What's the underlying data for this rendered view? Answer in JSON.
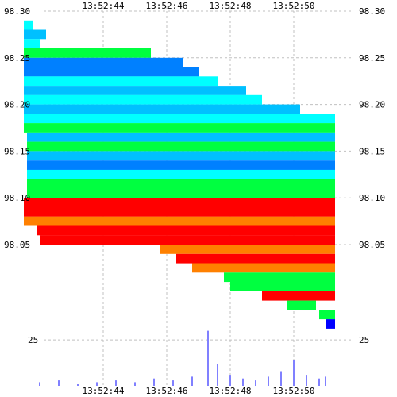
{
  "chart_data": [
    {
      "type": "heatmap",
      "title": "",
      "xlabel": "",
      "ylabel": "",
      "x_tick_labels": [
        "13:52:44",
        "13:52:46",
        "13:52:48",
        "13:52:50"
      ],
      "y_tick_labels": [
        "98.30",
        "98.25",
        "98.20",
        "98.15",
        "98.10",
        "98.05"
      ],
      "ylim": [
        98.0,
        98.3
      ],
      "grid": true,
      "colors": {
        "red": "#ff0000",
        "orange": "#ff8000",
        "yellow": "#ffe000",
        "green": "#00ff40",
        "cyan": "#00ffff",
        "sky": "#00c0ff",
        "blue": "#0080ff",
        "navy": "#0000ff",
        "purple": "#8000ff"
      },
      "bands": [
        {
          "price": 98.285,
          "start": "13:52:41.5",
          "end": "13:52:41.8",
          "color": "cyan"
        },
        {
          "price": 98.275,
          "start": "13:52:41.5",
          "end": "13:52:42.2",
          "color": "sky"
        },
        {
          "price": 98.265,
          "start": "13:52:41.5",
          "end": "13:52:42.0",
          "color": "cyan"
        },
        {
          "price": 98.255,
          "start": "13:52:41.5",
          "end": "13:52:45.5",
          "color": "green"
        },
        {
          "price": 98.245,
          "start": "13:52:41.5",
          "end": "13:52:46.5",
          "color": "blue"
        },
        {
          "price": 98.235,
          "start": "13:52:41.5",
          "end": "13:52:47.0",
          "color": "blue"
        },
        {
          "price": 98.225,
          "start": "13:52:41.5",
          "end": "13:52:47.6",
          "color": "cyan"
        },
        {
          "price": 98.215,
          "start": "13:52:41.5",
          "end": "13:52:48.5",
          "color": "sky"
        },
        {
          "price": 98.205,
          "start": "13:52:41.5",
          "end": "13:52:49.0",
          "color": "cyan"
        },
        {
          "price": 98.195,
          "start": "13:52:41.5",
          "end": "13:52:50.2",
          "color": "sky"
        },
        {
          "price": 98.185,
          "start": "13:52:41.5",
          "end": "13:52:51.3",
          "color": "cyan"
        },
        {
          "price": 98.175,
          "start": "13:52:41.5",
          "end": "13:52:51.3",
          "color": "green"
        },
        {
          "price": 98.165,
          "start": "13:52:41.6",
          "end": "13:52:51.3",
          "color": "sky"
        },
        {
          "price": 98.155,
          "start": "13:52:41.6",
          "end": "13:52:51.3",
          "color": "green"
        },
        {
          "price": 98.145,
          "start": "13:52:41.6",
          "end": "13:52:51.3",
          "color": "sky"
        },
        {
          "price": 98.135,
          "start": "13:52:41.6",
          "end": "13:52:51.3",
          "color": "blue"
        },
        {
          "price": 98.125,
          "start": "13:52:41.6",
          "end": "13:52:51.3",
          "color": "cyan"
        },
        {
          "price": 98.115,
          "start": "13:52:41.6",
          "end": "13:52:51.3",
          "color": "green"
        },
        {
          "price": 98.105,
          "start": "13:52:41.6",
          "end": "13:52:51.3",
          "color": "green"
        },
        {
          "price": 98.095,
          "start": "13:52:41.5",
          "end": "13:52:51.3",
          "color": "red"
        },
        {
          "price": 98.085,
          "start": "13:52:41.5",
          "end": "13:52:51.3",
          "color": "red"
        },
        {
          "price": 98.075,
          "start": "13:52:41.5",
          "end": "13:52:51.3",
          "color": "orange"
        },
        {
          "price": 98.065,
          "start": "13:52:41.9",
          "end": "13:52:51.3",
          "color": "red"
        },
        {
          "price": 98.055,
          "start": "13:52:42.0",
          "end": "13:52:51.3",
          "color": "red"
        },
        {
          "price": 98.045,
          "start": "13:52:45.8",
          "end": "13:52:51.3",
          "color": "orange"
        },
        {
          "price": 98.035,
          "start": "13:52:46.3",
          "end": "13:52:51.3",
          "color": "red"
        },
        {
          "price": 98.025,
          "start": "13:52:46.8",
          "end": "13:52:51.3",
          "color": "orange"
        },
        {
          "price": 98.015,
          "start": "13:52:47.8",
          "end": "13:52:51.3",
          "color": "green"
        },
        {
          "price": 98.005,
          "start": "13:52:48.0",
          "end": "13:52:51.3",
          "color": "green"
        },
        {
          "price": 97.995,
          "start": "13:52:49.0",
          "end": "13:52:51.3",
          "color": "red"
        },
        {
          "price": 97.985,
          "start": "13:52:49.8",
          "end": "13:52:50.7",
          "color": "green"
        },
        {
          "price": 97.975,
          "start": "13:52:50.8",
          "end": "13:52:51.3",
          "color": "green"
        },
        {
          "price": 97.965,
          "start": "13:52:51.0",
          "end": "13:52:51.3",
          "color": "navy"
        }
      ]
    },
    {
      "type": "bar",
      "title": "",
      "xlabel": "",
      "ylabel": "",
      "x_tick_labels": [
        "13:52:44",
        "13:52:46",
        "13:52:48",
        "13:52:50"
      ],
      "y_tick_labels": [
        "25"
      ],
      "ylim": [
        0,
        35
      ],
      "color": "#8080ff",
      "x": [
        "13:52:42.0",
        "13:52:42.6",
        "13:52:43.2",
        "13:52:43.8",
        "13:52:44.4",
        "13:52:45.0",
        "13:52:45.6",
        "13:52:46.2",
        "13:52:46.8",
        "13:52:47.3",
        "13:52:47.6",
        "13:52:48.0",
        "13:52:48.4",
        "13:52:48.8",
        "13:52:49.2",
        "13:52:49.6",
        "13:52:50.0",
        "13:52:50.4",
        "13:52:50.8",
        "13:52:51.0"
      ],
      "values": [
        2,
        3,
        1,
        2,
        3,
        2,
        4,
        3,
        5,
        30,
        12,
        6,
        4,
        3,
        5,
        8,
        14,
        6,
        4,
        5
      ]
    }
  ]
}
